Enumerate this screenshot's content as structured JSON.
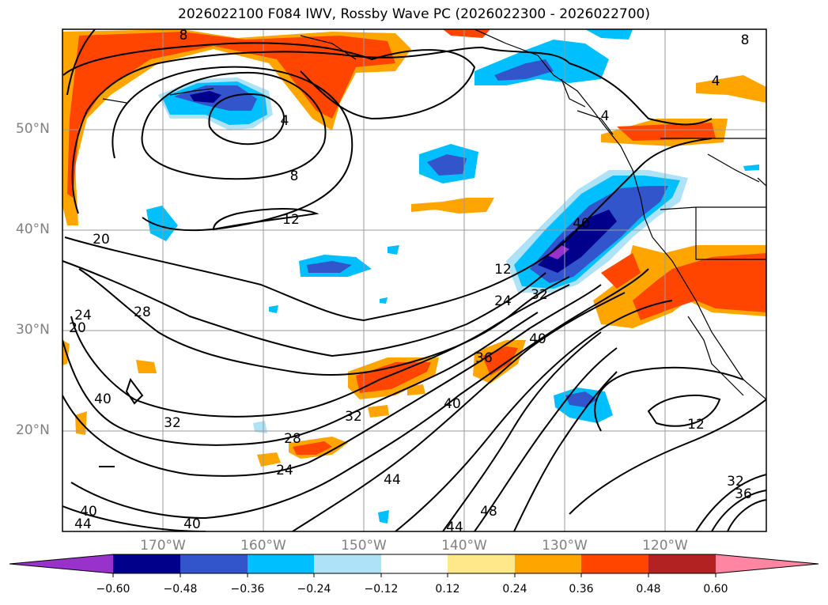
{
  "title": "2026022100 F084 IWV, Rossby Wave PC (2026022300 - 2026022700)",
  "lat_labels": [
    "50°N",
    "40°N",
    "30°N",
    "20°N"
  ],
  "lon_labels": [
    "170°W",
    "160°W",
    "150°W",
    "140°W",
    "130°W",
    "120°W"
  ],
  "contour_labels": [
    "8",
    "4",
    "8",
    "4",
    "4",
    "8",
    "12",
    "20",
    "20",
    "24",
    "28",
    "12",
    "24",
    "32",
    "40",
    "40",
    "32",
    "28",
    "24",
    "36",
    "40",
    "32",
    "40",
    "44",
    "48",
    "44",
    "12",
    "32",
    "36",
    "40",
    "44",
    "40"
  ],
  "colorbar": {
    "ticks": [
      "−0.60",
      "−0.48",
      "−0.36",
      "−0.24",
      "−0.12",
      "0.12",
      "0.24",
      "0.36",
      "0.48",
      "0.60"
    ],
    "colors": [
      "#9932CC",
      "#00008B",
      "#3355CC",
      "#00BFFF",
      "#ADE2F7",
      "#FFFFFF",
      "#FFE88A",
      "#FFA500",
      "#FF4500",
      "#B22222",
      "#FF85A2"
    ]
  }
}
